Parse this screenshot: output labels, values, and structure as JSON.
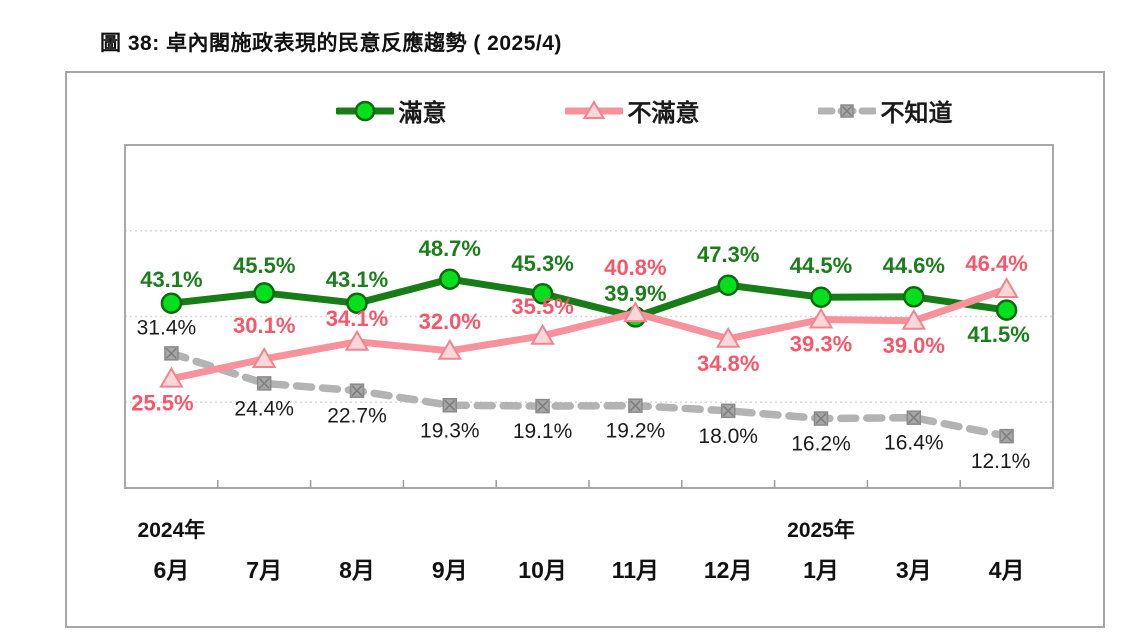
{
  "page": {
    "title": "圖 38: 卓內閣施政表現的民意反應趨勢 ( 2025/4)"
  },
  "chart_data": {
    "type": "line",
    "title": "卓內閣施政表現的民意反應趨勢",
    "period_note": "2025/4",
    "legend_position": "top",
    "grid": "dotted-horizontal",
    "x": {
      "categories": [
        "6月",
        "7月",
        "8月",
        "9月",
        "10月",
        "11月",
        "12月",
        "1月",
        "3月",
        "4月"
      ],
      "year_groups": [
        {
          "label": "2024年",
          "index": 0
        },
        {
          "label": "2025年",
          "index": 7
        }
      ]
    },
    "y": {
      "min": 0,
      "max": 80,
      "unit": "%",
      "gridlines": [
        20,
        40,
        60
      ],
      "tick_labels_visible": false
    },
    "series": [
      {
        "id": "satisfied",
        "name": "滿意",
        "marker": "circle",
        "line_style": "solid",
        "colors": {
          "line": "#177d17",
          "marker_fill": "#06df1d",
          "marker_stroke": "#0b6b0b",
          "label": "#1b7e1b"
        },
        "values": [
          43.1,
          45.5,
          43.1,
          48.7,
          45.3,
          39.9,
          47.3,
          44.5,
          44.6,
          41.5
        ],
        "label_layout": {
          "positions": [
            "above",
            "above",
            "above",
            "above",
            "above",
            "above",
            "above",
            "above",
            "above",
            "below"
          ],
          "dx": [
            0,
            0,
            0,
            0,
            0,
            0,
            0,
            0,
            0,
            -8
          ],
          "dy": [
            0,
            -4,
            0,
            -7,
            -7,
            0,
            -7,
            -8,
            -8,
            0
          ]
        }
      },
      {
        "id": "dissatisfied",
        "name": "不滿意",
        "marker": "triangle",
        "line_style": "solid",
        "colors": {
          "line": "#f7929d",
          "marker_fill": "#fbd7da",
          "marker_stroke": "#f0848f",
          "label": "#f8566a"
        },
        "values": [
          25.5,
          30.1,
          34.1,
          32.0,
          35.5,
          40.8,
          34.8,
          39.3,
          39.0,
          46.4
        ],
        "label_layout": {
          "positions": [
            "below",
            "above",
            "above",
            "above",
            "above",
            "above",
            "below",
            "below",
            "below",
            "above"
          ],
          "dx": [
            -9,
            0,
            0,
            0,
            0,
            0,
            0,
            0,
            0,
            -10
          ],
          "dy": [
            0,
            -10,
            0,
            -6,
            -6,
            -22,
            0,
            0,
            0,
            -2
          ]
        }
      },
      {
        "id": "dont-know",
        "name": "不知道",
        "marker": "square-x",
        "line_style": "dashed",
        "colors": {
          "line": "#b3b3b3",
          "marker_fill": "#a6a6a6",
          "marker_stroke": "#8a8a8a",
          "label": "#1c1c1c"
        },
        "values": [
          31.4,
          24.4,
          22.7,
          19.3,
          19.1,
          19.2,
          18.0,
          16.2,
          16.4,
          12.1
        ],
        "label_layout": {
          "positions": [
            "above",
            "below",
            "below",
            "below",
            "below",
            "below",
            "below",
            "below",
            "below",
            "below"
          ],
          "dx": [
            -5,
            0,
            0,
            0,
            0,
            0,
            0,
            0,
            0,
            -6
          ],
          "dy": [
            -3,
            0,
            0,
            0,
            0,
            0,
            0,
            0,
            0,
            0
          ]
        }
      }
    ]
  }
}
